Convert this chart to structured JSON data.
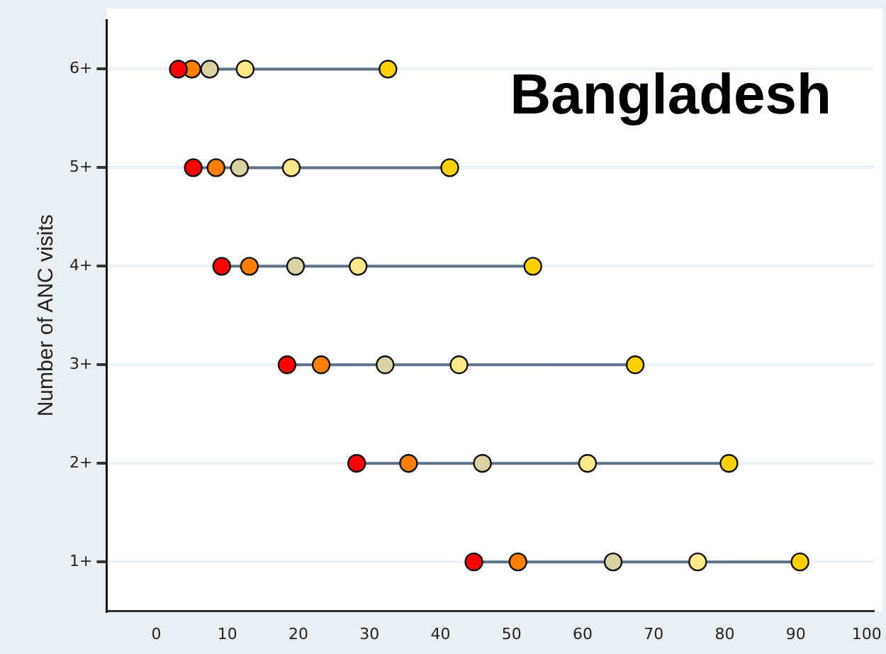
{
  "chart_data": {
    "type": "scatter",
    "orientation": "horizontal",
    "title": "Bangladesh",
    "ylabel": "Number of ANC visits",
    "categories": [
      "6+",
      "5+",
      "4+",
      "3+",
      "2+",
      "1+"
    ],
    "series": [
      {
        "color": "#ff0000",
        "values": [
          3.1,
          5.2,
          9.2,
          18.4,
          28.2,
          44.7
        ]
      },
      {
        "color": "#ff7f00",
        "values": [
          5.0,
          8.4,
          13.1,
          23.2,
          35.5,
          50.9
        ]
      },
      {
        "color": "#d8d2a6",
        "values": [
          7.5,
          11.7,
          19.6,
          32.2,
          45.9,
          64.3
        ]
      },
      {
        "color": "#ffe88a",
        "values": [
          12.5,
          19.0,
          28.4,
          42.6,
          60.7,
          76.2
        ]
      },
      {
        "color": "#ffd000",
        "values": [
          32.6,
          41.3,
          53.0,
          67.4,
          80.6,
          90.6
        ]
      }
    ],
    "xlim": [
      -7,
      101
    ],
    "xticks": [
      0,
      10,
      20,
      30,
      40,
      50,
      60,
      70,
      80,
      90,
      100
    ],
    "grid": "y",
    "legend": false,
    "marker": "circle"
  }
}
